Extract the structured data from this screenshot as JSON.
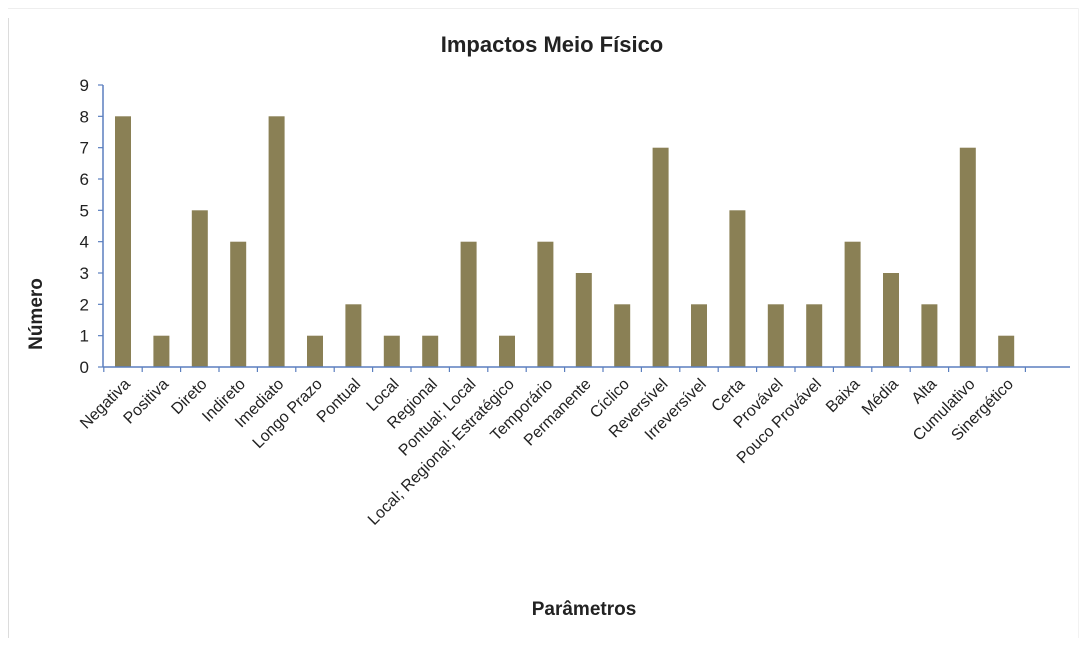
{
  "chart_data": {
    "type": "bar",
    "title": "Impactos Meio Físico",
    "xlabel": "Parâmetros",
    "ylabel": "Número",
    "ylim": [
      0,
      9
    ],
    "yticks": [
      "0",
      "1",
      "2",
      "3",
      "4",
      "5",
      "6",
      "7",
      "8",
      "9"
    ],
    "categories": [
      "Negativa",
      "Positiva",
      "Direto",
      "Indireto",
      "Imediato",
      "Longo Prazo",
      "Pontual",
      "Local",
      "Regional",
      "Pontual; Local",
      "Local; Regional; Estratégico",
      "Temporário",
      "Permanente",
      "Cíclico",
      "Reversível",
      "Irreversível",
      "Certa",
      "Provável",
      "Pouco Provável",
      "Baixa",
      "Média",
      "Alta",
      "Cumulativo",
      "Sinergético"
    ],
    "values": [
      8,
      1,
      5,
      4,
      8,
      1,
      2,
      1,
      1,
      4,
      1,
      4,
      3,
      2,
      7,
      2,
      5,
      2,
      2,
      4,
      3,
      2,
      7,
      1
    ],
    "bar_color": "#8a8055",
    "axis_color": "#5b7fbf",
    "grid": false,
    "legend": "none"
  }
}
